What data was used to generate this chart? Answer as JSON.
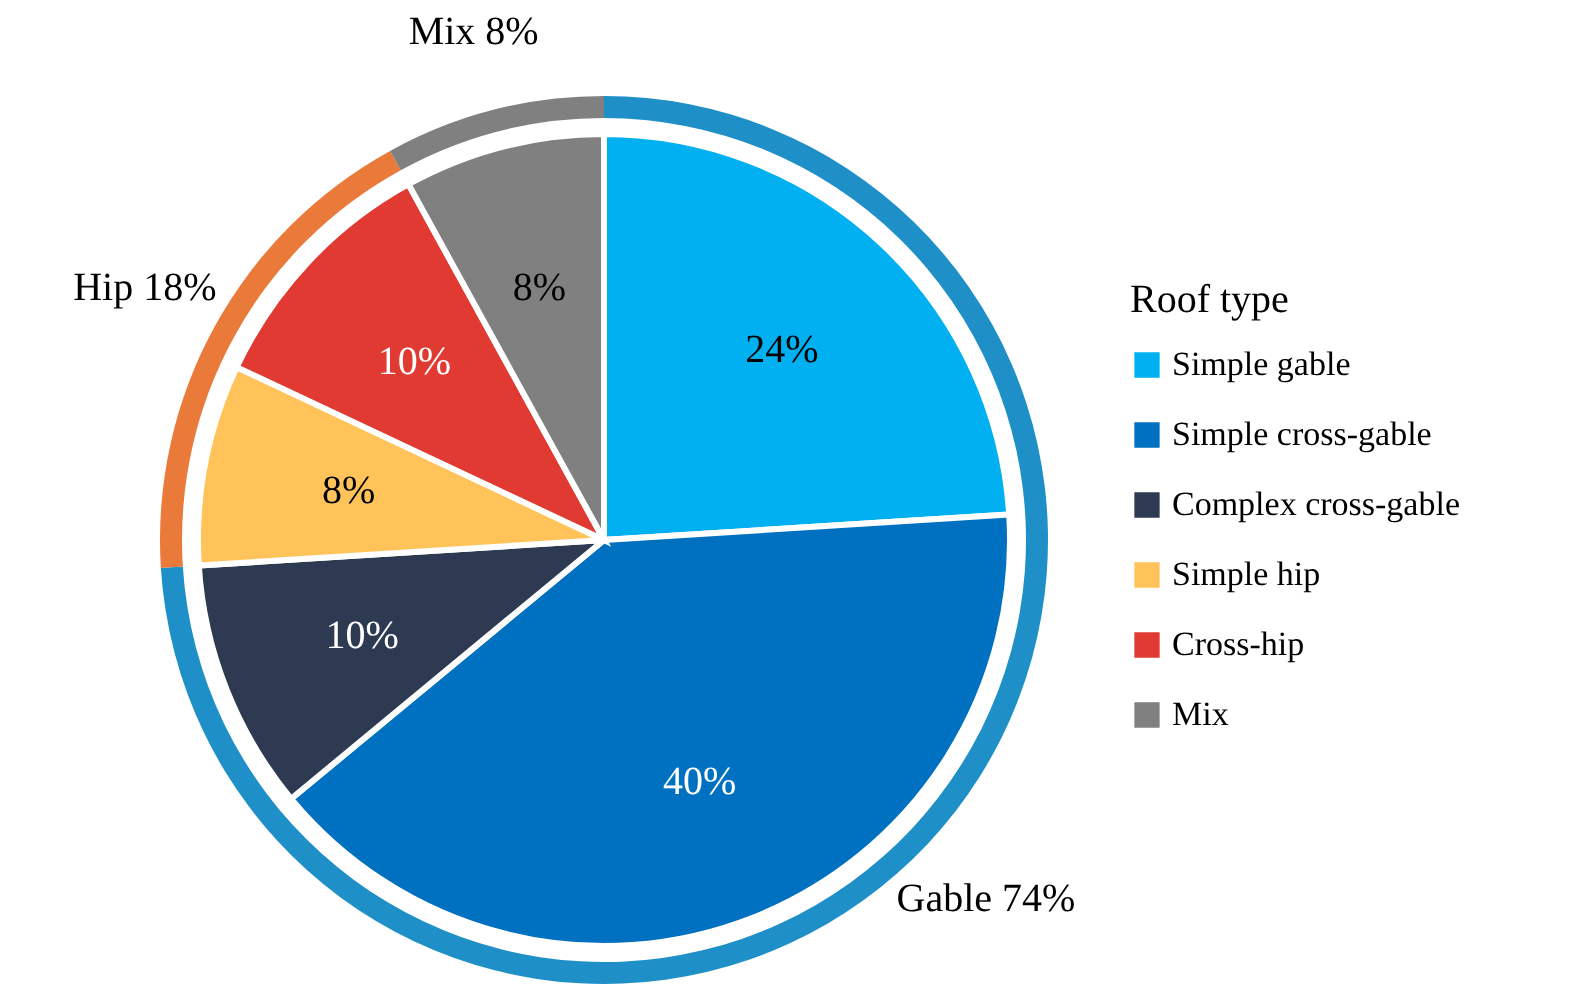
{
  "chart_data": [
    {
      "type": "pie",
      "legend_title": "Roof type",
      "legend": "right",
      "categories": [
        "Simple gable",
        "Simple cross-gable",
        "Complex cross-gable",
        "Simple hip",
        "Cross-hip",
        "Mix"
      ],
      "values": [
        24,
        40,
        10,
        8,
        10,
        8
      ],
      "colors": [
        "#00b0f0",
        "#0070c0",
        "#2e3a52",
        "#ffc35a",
        "#e03a32",
        "#808080"
      ],
      "value_labels": [
        "24%",
        "40%",
        "10%",
        "8%",
        "10%",
        "8%"
      ]
    },
    {
      "type": "donut",
      "categories": [
        "Gable",
        "Hip",
        "Mix"
      ],
      "values": [
        74,
        18,
        8
      ],
      "colors": [
        "#1f8fc8",
        "#ea7a3a",
        "#808080"
      ],
      "value_labels": [
        "74%",
        "18%",
        "8%"
      ]
    }
  ]
}
